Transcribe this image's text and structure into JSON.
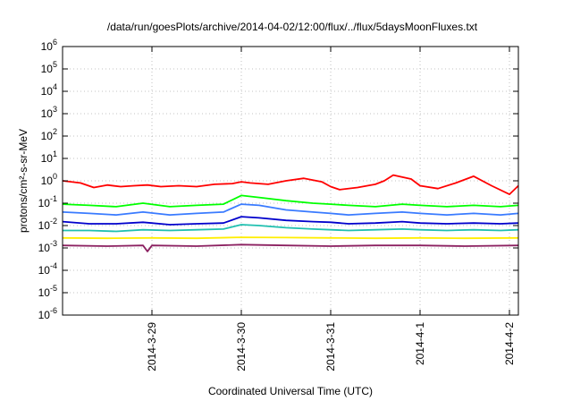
{
  "chart_data": {
    "type": "line",
    "title": "/data/run/goesPlots/archive/2014-04-02/12:00/flux/../flux/5daysMoonFluxes.txt",
    "xlabel": "Coordinated Universal Time (UTC)",
    "ylabel": "protons/cm²-s-sr-MeV",
    "yscale": "log",
    "ylim": [
      1e-06,
      1000000.0
    ],
    "xlim": [
      0,
      5.1
    ],
    "xtick_values": [
      1,
      2,
      3,
      4,
      5
    ],
    "xtick_labels": [
      "2014-3-29",
      "2014-3-30",
      "2014-3-31",
      "2014-4-1",
      "2014-4-2"
    ],
    "ytick_exponents": [
      -6,
      -5,
      -4,
      -3,
      -2,
      -1,
      0,
      1,
      2,
      3,
      4,
      5,
      6
    ],
    "ytick_base": "10",
    "grid": true,
    "legend": "none",
    "series": [
      {
        "color": "#ff0000",
        "x": [
          0.0,
          0.2,
          0.35,
          0.5,
          0.65,
          0.8,
          0.95,
          1.1,
          1.3,
          1.5,
          1.7,
          1.9,
          2.0,
          2.1,
          2.3,
          2.5,
          2.7,
          2.9,
          3.0,
          3.1,
          3.3,
          3.5,
          3.6,
          3.7,
          3.9,
          4.0,
          4.2,
          4.4,
          4.6,
          4.8,
          5.0,
          5.1
        ],
        "y": [
          1.0,
          0.8,
          0.5,
          0.65,
          0.55,
          0.6,
          0.65,
          0.55,
          0.6,
          0.55,
          0.7,
          0.75,
          0.9,
          0.8,
          0.7,
          1.0,
          1.3,
          0.9,
          0.55,
          0.4,
          0.5,
          0.7,
          1.0,
          1.8,
          1.2,
          0.6,
          0.45,
          0.8,
          1.6,
          0.6,
          0.25,
          0.6
        ]
      },
      {
        "color": "#00ff00",
        "x": [
          0.0,
          0.3,
          0.6,
          0.9,
          1.2,
          1.5,
          1.8,
          2.0,
          2.2,
          2.5,
          2.8,
          3.0,
          3.2,
          3.5,
          3.8,
          4.0,
          4.3,
          4.6,
          4.9,
          5.1
        ],
        "y": [
          0.09,
          0.08,
          0.07,
          0.1,
          0.07,
          0.08,
          0.09,
          0.22,
          0.18,
          0.13,
          0.1,
          0.09,
          0.08,
          0.07,
          0.09,
          0.08,
          0.07,
          0.08,
          0.07,
          0.08
        ]
      },
      {
        "color": "#3a7bff",
        "x": [
          0.0,
          0.3,
          0.6,
          0.9,
          1.2,
          1.5,
          1.8,
          2.0,
          2.2,
          2.5,
          2.8,
          3.0,
          3.2,
          3.5,
          3.8,
          4.0,
          4.3,
          4.6,
          4.9,
          5.1
        ],
        "y": [
          0.04,
          0.035,
          0.03,
          0.04,
          0.03,
          0.035,
          0.04,
          0.09,
          0.08,
          0.05,
          0.04,
          0.035,
          0.03,
          0.035,
          0.04,
          0.035,
          0.03,
          0.035,
          0.03,
          0.035
        ]
      },
      {
        "color": "#0000cc",
        "x": [
          0.0,
          0.3,
          0.6,
          0.9,
          1.2,
          1.5,
          1.8,
          2.0,
          2.2,
          2.5,
          2.8,
          3.0,
          3.2,
          3.5,
          3.8,
          4.0,
          4.3,
          4.6,
          4.9,
          5.1
        ],
        "y": [
          0.015,
          0.012,
          0.012,
          0.014,
          0.011,
          0.012,
          0.013,
          0.025,
          0.022,
          0.017,
          0.015,
          0.014,
          0.012,
          0.013,
          0.015,
          0.013,
          0.012,
          0.013,
          0.012,
          0.013
        ]
      },
      {
        "color": "#20c0b0",
        "x": [
          0.0,
          0.3,
          0.6,
          0.9,
          1.2,
          1.5,
          1.8,
          2.0,
          2.2,
          2.5,
          2.8,
          3.0,
          3.2,
          3.5,
          3.8,
          4.0,
          4.3,
          4.6,
          4.9,
          5.1
        ],
        "y": [
          0.006,
          0.006,
          0.0055,
          0.0065,
          0.006,
          0.0065,
          0.007,
          0.011,
          0.01,
          0.008,
          0.007,
          0.0065,
          0.006,
          0.0065,
          0.007,
          0.0065,
          0.006,
          0.0065,
          0.006,
          0.0065
        ]
      },
      {
        "color": "#ffee00",
        "x": [
          0.0,
          0.5,
          1.0,
          1.5,
          2.0,
          2.5,
          3.0,
          3.5,
          4.0,
          4.5,
          5.1
        ],
        "y": [
          0.0028,
          0.0027,
          0.0028,
          0.0027,
          0.003,
          0.0029,
          0.0028,
          0.0027,
          0.0028,
          0.0027,
          0.0028
        ]
      },
      {
        "color": "#8b2060",
        "x": [
          0.0,
          0.5,
          0.9,
          0.95,
          1.0,
          1.5,
          2.0,
          2.5,
          3.0,
          3.5,
          4.0,
          4.5,
          5.1
        ],
        "y": [
          0.0013,
          0.0012,
          0.0013,
          0.0007,
          0.0013,
          0.0012,
          0.0014,
          0.0013,
          0.0012,
          0.0013,
          0.0013,
          0.0012,
          0.0013
        ]
      }
    ]
  }
}
